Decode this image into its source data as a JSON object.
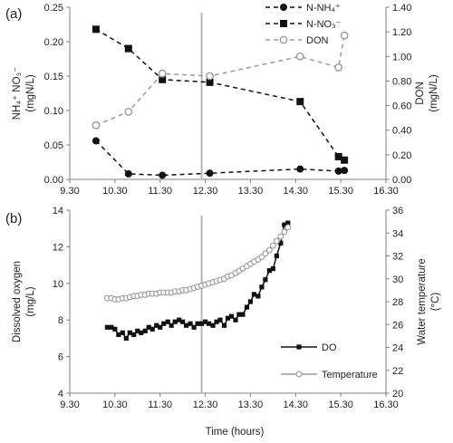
{
  "chart_data": [
    {
      "type": "line",
      "panel_label": "(a)",
      "xlabel": "",
      "x_ticks": [
        "9.30",
        "10.30",
        "11.30",
        "12.30",
        "13.30",
        "14.30",
        "15.30",
        "16.30"
      ],
      "xlim": [
        9.5,
        16.5
      ],
      "ylabel_left": [
        "NH₄⁺  NO₃⁻",
        "(mgN/L)"
      ],
      "ylabel_right": [
        "DON",
        "(mgN/L)"
      ],
      "ylim_left": [
        0,
        0.25
      ],
      "ylim_right": [
        0,
        1.4
      ],
      "y_ticks_left": [
        "0.00",
        "0.05",
        "0.10",
        "0.15",
        "0.20",
        "0.25"
      ],
      "y_ticks_right": [
        "0.00",
        "0.20",
        "0.40",
        "0.60",
        "0.80",
        "1.00",
        "1.20",
        "1.40"
      ],
      "vertical_line_x": 12.42,
      "legend_position": "top-right",
      "series": [
        {
          "name": "N-NH₄⁺",
          "axis": "left",
          "color": "#111111",
          "marker": "circle-filled",
          "x": [
            10.08,
            10.8,
            11.55,
            12.6,
            14.6,
            15.45,
            15.58
          ],
          "y": [
            0.056,
            0.008,
            0.006,
            0.009,
            0.015,
            0.012,
            0.013
          ]
        },
        {
          "name": "N-NO₃⁻",
          "axis": "left",
          "color": "#111111",
          "marker": "square-filled",
          "x": [
            10.08,
            10.8,
            11.55,
            12.6,
            14.6,
            15.45,
            15.58
          ],
          "y": [
            0.218,
            0.19,
            0.145,
            0.141,
            0.113,
            0.033,
            0.028
          ]
        },
        {
          "name": "DON",
          "axis": "right",
          "color": "#9a9a9a",
          "marker": "circle-open",
          "x": [
            10.08,
            10.8,
            11.55,
            12.6,
            14.6,
            15.45,
            15.58
          ],
          "y": [
            0.44,
            0.55,
            0.86,
            0.84,
            1.0,
            0.91,
            1.17
          ]
        }
      ]
    },
    {
      "type": "line",
      "panel_label": "(b)",
      "xlabel": "Time (hours)",
      "x_ticks": [
        "9.30",
        "10.30",
        "11.30",
        "12.30",
        "13.30",
        "14.30",
        "15.30",
        "16.30"
      ],
      "xlim": [
        9.5,
        16.5
      ],
      "ylabel_left": [
        "Dissolved oxygen",
        "(mg/L)"
      ],
      "ylabel_right": [
        "Water temperature",
        "(°C)"
      ],
      "ylim_left": [
        4,
        14
      ],
      "ylim_right": [
        20,
        36
      ],
      "y_ticks_left": [
        "4",
        "6",
        "8",
        "10",
        "12",
        "14"
      ],
      "y_ticks_right": [
        "20",
        "22",
        "24",
        "26",
        "28",
        "30",
        "32",
        "34",
        "36"
      ],
      "vertical_line_x": 12.42,
      "legend_position": "bottom-right",
      "series": [
        {
          "name": "DO",
          "axis": "left",
          "color": "#111111",
          "marker": "square-filled",
          "x": [
            10.33,
            10.42,
            10.5,
            10.58,
            10.67,
            10.75,
            10.83,
            10.92,
            11.0,
            11.08,
            11.17,
            11.25,
            11.33,
            11.42,
            11.5,
            11.58,
            11.67,
            11.75,
            11.83,
            11.92,
            12.0,
            12.08,
            12.17,
            12.25,
            12.33,
            12.42,
            12.5,
            12.58,
            12.67,
            12.75,
            12.83,
            12.92,
            13.0,
            13.08,
            13.17,
            13.25,
            13.33,
            13.42,
            13.5,
            13.58,
            13.67,
            13.75,
            13.83,
            13.92,
            14.0,
            14.08,
            14.17,
            14.25,
            14.33
          ],
          "y": [
            7.6,
            7.6,
            7.5,
            7.2,
            7.3,
            7.0,
            7.3,
            7.2,
            7.4,
            7.3,
            7.4,
            7.6,
            7.5,
            7.7,
            7.6,
            7.8,
            7.9,
            7.7,
            7.9,
            8.0,
            7.9,
            7.7,
            7.8,
            7.6,
            7.8,
            7.8,
            7.9,
            7.8,
            7.7,
            7.9,
            8.0,
            7.7,
            8.1,
            8.2,
            8.0,
            8.3,
            8.3,
            8.7,
            9.0,
            9.4,
            9.3,
            9.8,
            10.2,
            10.7,
            10.8,
            11.5,
            12.2,
            13.2,
            13.3
          ]
        },
        {
          "name": "Temperature",
          "axis": "right",
          "color": "#9a9a9a",
          "marker": "circle-open",
          "x": [
            10.33,
            10.42,
            10.5,
            10.58,
            10.67,
            10.75,
            10.83,
            10.92,
            11.0,
            11.08,
            11.17,
            11.25,
            11.33,
            11.42,
            11.5,
            11.58,
            11.67,
            11.75,
            11.83,
            11.92,
            12.0,
            12.08,
            12.17,
            12.25,
            12.33,
            12.42,
            12.5,
            12.58,
            12.67,
            12.75,
            12.83,
            12.92,
            13.0,
            13.08,
            13.17,
            13.25,
            13.33,
            13.42,
            13.5,
            13.58,
            13.67,
            13.75,
            13.83,
            13.92,
            14.0,
            14.08,
            14.17,
            14.25,
            14.33
          ],
          "y": [
            28.3,
            28.3,
            28.2,
            28.2,
            28.3,
            28.3,
            28.4,
            28.5,
            28.5,
            28.6,
            28.6,
            28.7,
            28.7,
            28.7,
            28.8,
            28.8,
            28.8,
            28.8,
            28.9,
            28.9,
            29.0,
            29.0,
            29.1,
            29.2,
            29.3,
            29.4,
            29.5,
            29.6,
            29.7,
            29.8,
            29.9,
            30.0,
            30.2,
            30.3,
            30.5,
            30.7,
            30.9,
            31.1,
            31.3,
            31.5,
            31.7,
            31.9,
            32.2,
            32.5,
            32.9,
            33.3,
            33.7,
            34.1,
            34.5
          ]
        }
      ]
    }
  ]
}
